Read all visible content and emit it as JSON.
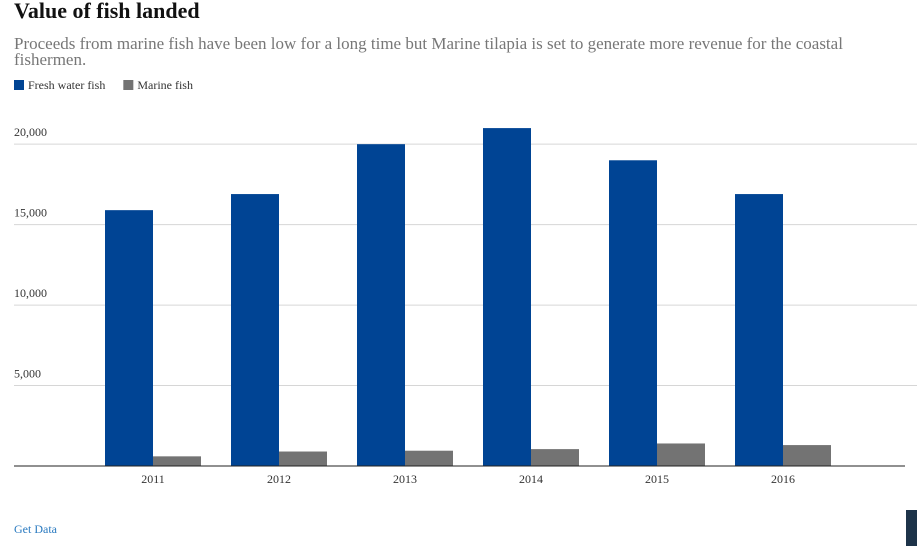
{
  "chart_data": {
    "type": "bar",
    "title": "Value of fish landed",
    "subtitle": "Proceeds from marine fish have been low for a long time but Marine tilapia is set to generate more revenue for the coastal fishermen.",
    "categories": [
      "2011",
      "2012",
      "2013",
      "2014",
      "2015",
      "2016"
    ],
    "series": [
      {
        "name": "Fresh water fish",
        "color": "#004494",
        "values": [
          15900,
          16900,
          20000,
          21000,
          19000,
          16900
        ]
      },
      {
        "name": "Marine fish",
        "color": "#737373",
        "values": [
          600,
          900,
          950,
          1050,
          1400,
          1300
        ]
      }
    ],
    "ylim": [
      0,
      22000
    ],
    "yticks": [
      {
        "value": 5000,
        "label": "5,000"
      },
      {
        "value": 10000,
        "label": "10,000"
      },
      {
        "value": 15000,
        "label": "15,000"
      },
      {
        "value": 20000,
        "label": "20,000"
      }
    ],
    "grid": true,
    "link": "Get Data"
  }
}
